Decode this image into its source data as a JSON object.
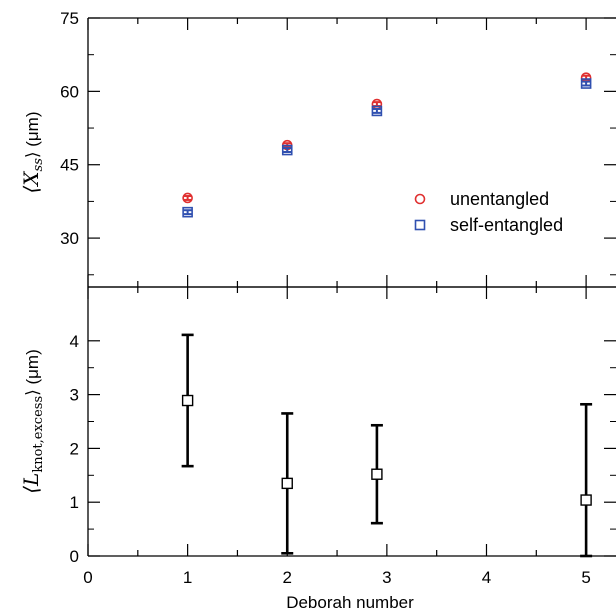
{
  "chart_data": [
    {
      "type": "scatter",
      "panel": "top",
      "xlim": [
        0,
        5.3
      ],
      "ylim": [
        20,
        75
      ],
      "yticks": [
        30,
        45,
        60,
        75
      ],
      "ytick_labels": [
        "30",
        "45",
        "60",
        "75"
      ],
      "ylabel_main": "⟨X",
      "ylabel_sub": "ss",
      "ylabel_tail": "⟩ (μm)",
      "legend_position": "lower-right",
      "series": [
        {
          "name": "unentangled",
          "marker": "circle",
          "color": "#e03030",
          "points": [
            {
              "x": 1.0,
              "y": 38.2,
              "err": 0.4
            },
            {
              "x": 2.0,
              "y": 49.0,
              "err": 0.4
            },
            {
              "x": 2.9,
              "y": 57.4,
              "err": 0.4
            },
            {
              "x": 5.0,
              "y": 62.8,
              "err": 0.4
            }
          ]
        },
        {
          "name": "self-entangled",
          "marker": "square",
          "color": "#3050b0",
          "points": [
            {
              "x": 1.0,
              "y": 35.3,
              "err": 0.4
            },
            {
              "x": 2.0,
              "y": 48.0,
              "err": 0.4
            },
            {
              "x": 2.9,
              "y": 56.0,
              "err": 0.4
            },
            {
              "x": 5.0,
              "y": 61.6,
              "err": 0.4
            }
          ]
        }
      ]
    },
    {
      "type": "scatter",
      "panel": "bottom",
      "xlim": [
        0,
        5.3
      ],
      "ylim": [
        0,
        5
      ],
      "yticks": [
        0,
        1,
        2,
        3,
        4
      ],
      "ytick_labels": [
        "0",
        "1",
        "2",
        "3",
        "4"
      ],
      "xticks": [
        0,
        1,
        2,
        3,
        4,
        5
      ],
      "xtick_labels": [
        "0",
        "1",
        "2",
        "3",
        "4",
        "5"
      ],
      "xlabel": "Deborah number",
      "ylabel_main": "⟨L",
      "ylabel_sub": "knot,excess",
      "ylabel_tail": "⟩ (μm)",
      "series": [
        {
          "marker": "square",
          "color": "#000000",
          "points": [
            {
              "x": 1.0,
              "y": 2.89,
              "ylow": 1.67,
              "yhigh": 4.11
            },
            {
              "x": 2.0,
              "y": 1.35,
              "ylow": 0.05,
              "yhigh": 2.65
            },
            {
              "x": 2.9,
              "y": 1.52,
              "ylow": 0.61,
              "yhigh": 2.43
            },
            {
              "x": 5.0,
              "y": 1.04,
              "ylow": 0.0,
              "yhigh": 2.82
            }
          ]
        }
      ]
    }
  ]
}
